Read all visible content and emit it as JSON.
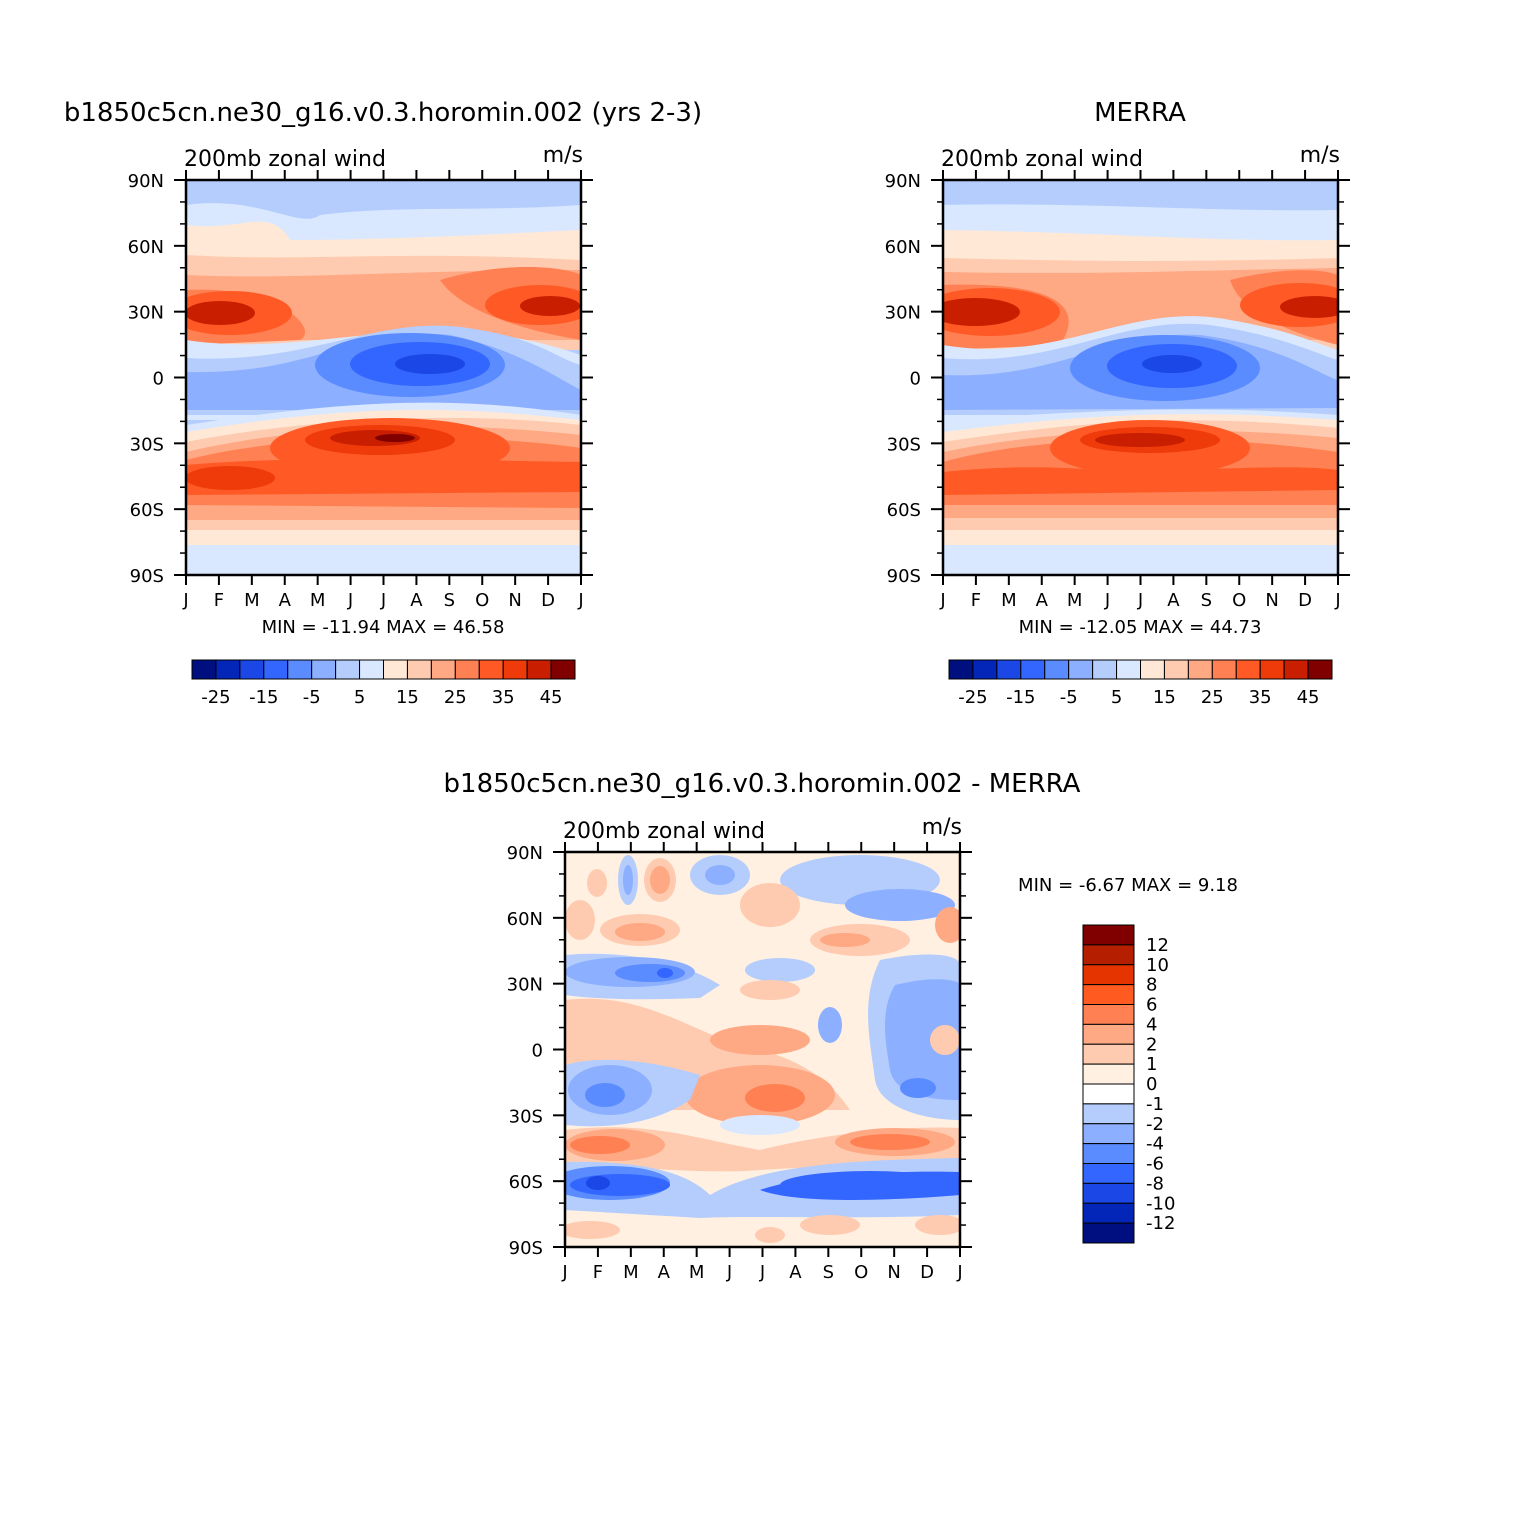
{
  "chart_data": [
    {
      "type": "heatmap",
      "title": "b1850c5cn.ne30_g16.v0.3.horomin.002 (yrs 2-3)",
      "subtitle": "200mb zonal wind",
      "units": "m/s",
      "x_tick_labels": [
        "J",
        "F",
        "M",
        "A",
        "M",
        "J",
        "J",
        "A",
        "S",
        "O",
        "N",
        "D",
        "J"
      ],
      "y_tick_labels": [
        "90N",
        "60N",
        "30N",
        "0",
        "30S",
        "60S",
        "90S"
      ],
      "min_max_text": "MIN =  -11.94  MAX =    46.58",
      "min": -11.94,
      "max": 46.58,
      "colorbar_levels": [
        -30,
        -25,
        -20,
        -15,
        -10,
        -5,
        0,
        5,
        10,
        15,
        20,
        25,
        30,
        35,
        40,
        45,
        50
      ],
      "colorbar_tick_labels": [
        "-25",
        "-15",
        "-5",
        "5",
        "15",
        "25",
        "35",
        "45"
      ],
      "colorbar_colors": [
        "#000f80",
        "#0426b8",
        "#1a47e6",
        "#3366ff",
        "#5a8cff",
        "#8cb0ff",
        "#b4cdfc",
        "#d9e8ff",
        "#ffe8d6",
        "#ffcbb0",
        "#ffa884",
        "#ff8052",
        "#ff5a26",
        "#ef3a0a",
        "#c91f00",
        "#800000"
      ]
    },
    {
      "type": "heatmap",
      "title": "MERRA",
      "subtitle": "200mb zonal wind",
      "units": "m/s",
      "x_tick_labels": [
        "J",
        "F",
        "M",
        "A",
        "M",
        "J",
        "J",
        "A",
        "S",
        "O",
        "N",
        "D",
        "J"
      ],
      "y_tick_labels": [
        "90N",
        "60N",
        "30N",
        "0",
        "30S",
        "60S",
        "90S"
      ],
      "min_max_text": "MIN =  -12.05  MAX =    44.73",
      "min": -12.05,
      "max": 44.73,
      "colorbar_levels": [
        -30,
        -25,
        -20,
        -15,
        -10,
        -5,
        0,
        5,
        10,
        15,
        20,
        25,
        30,
        35,
        40,
        45,
        50
      ],
      "colorbar_tick_labels": [
        "-25",
        "-15",
        "-5",
        "5",
        "15",
        "25",
        "35",
        "45"
      ],
      "colorbar_colors": [
        "#000f80",
        "#0426b8",
        "#1a47e6",
        "#3366ff",
        "#5a8cff",
        "#8cb0ff",
        "#b4cdfc",
        "#d9e8ff",
        "#ffe8d6",
        "#ffcbb0",
        "#ffa884",
        "#ff8052",
        "#ff5a26",
        "#ef3a0a",
        "#c91f00",
        "#800000"
      ]
    },
    {
      "type": "heatmap",
      "title": "b1850c5cn.ne30_g16.v0.3.horomin.002 - MERRA",
      "subtitle": "200mb zonal wind",
      "units": "m/s",
      "x_tick_labels": [
        "J",
        "F",
        "M",
        "A",
        "M",
        "J",
        "J",
        "A",
        "S",
        "O",
        "N",
        "D",
        "J"
      ],
      "y_tick_labels": [
        "90N",
        "60N",
        "30N",
        "0",
        "30S",
        "60S",
        "90S"
      ],
      "min_max_text": "MIN =    -6.67  MAX =      9.18",
      "min": -6.67,
      "max": 9.18,
      "colorbar_tick_labels": [
        "12",
        "10",
        "8",
        "6",
        "4",
        "2",
        "1",
        "0",
        "-1",
        "-2",
        "-4",
        "-6",
        "-8",
        "-10",
        "-12"
      ],
      "colorbar_colors": [
        "#800000",
        "#b51f00",
        "#e63400",
        "#ff5a1f",
        "#ff8052",
        "#ffa884",
        "#ffcbb0",
        "#fff0e1",
        "#ffffff",
        "#b4cdfc",
        "#8cb0ff",
        "#5a8cff",
        "#3366ff",
        "#1a47e6",
        "#0426b8",
        "#000f80"
      ]
    }
  ]
}
